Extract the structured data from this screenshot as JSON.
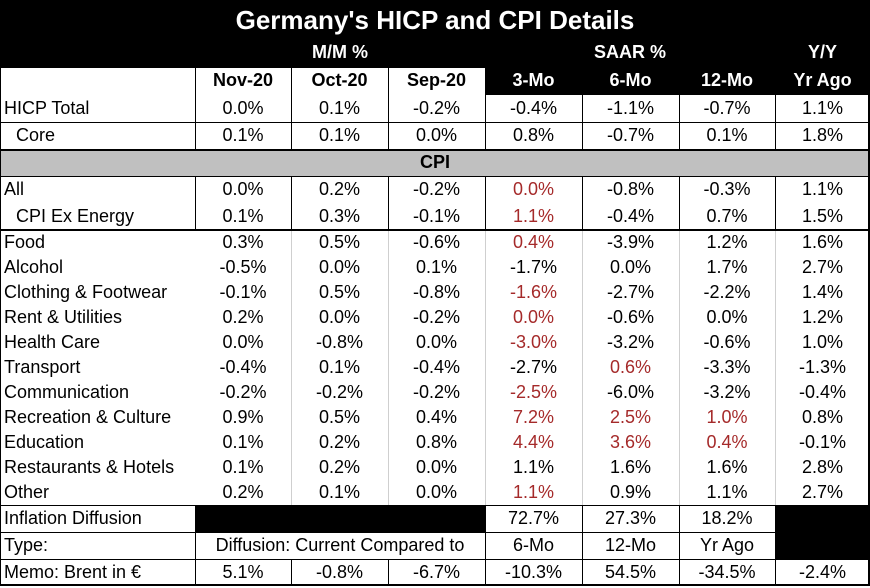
{
  "title": "Germany's HICP and CPI Details",
  "group_headers": {
    "mm": "M/M %",
    "saar": "SAAR %",
    "yy": "Y/Y"
  },
  "columns": [
    "Nov-20",
    "Oct-20",
    "Sep-20",
    "3-Mo",
    "6-Mo",
    "12-Mo",
    "Yr Ago"
  ],
  "hicp_rows": [
    {
      "label": "HICP Total",
      "values": [
        "0.0%",
        "0.1%",
        "-0.2%",
        "-0.4%",
        "-1.1%",
        "-0.7%",
        "1.1%"
      ]
    },
    {
      "label": "Core",
      "values": [
        "0.1%",
        "0.1%",
        "0.0%",
        "0.8%",
        "-0.7%",
        "0.1%",
        "1.8%"
      ]
    }
  ],
  "cpi_header": "CPI",
  "cpi_top_rows": [
    {
      "label": "All",
      "values": [
        "0.0%",
        "0.2%",
        "-0.2%",
        "0.0%",
        "-0.8%",
        "-0.3%",
        "1.1%"
      ]
    },
    {
      "label": "CPI Ex Energy",
      "values": [
        "0.1%",
        "0.3%",
        "-0.1%",
        "1.1%",
        "-0.4%",
        "0.7%",
        "1.5%"
      ]
    }
  ],
  "cpi_rows": [
    {
      "label": "Food",
      "values": [
        "0.3%",
        "0.5%",
        "-0.6%",
        "0.4%",
        "-3.9%",
        "1.2%",
        "1.6%"
      ]
    },
    {
      "label": "Alcohol",
      "values": [
        "-0.5%",
        "0.0%",
        "0.1%",
        "-1.7%",
        "0.0%",
        "1.7%",
        "2.7%"
      ]
    },
    {
      "label": "Clothing & Footwear",
      "values": [
        "-0.1%",
        "0.5%",
        "-0.8%",
        "-1.6%",
        "-2.7%",
        "-2.2%",
        "1.4%"
      ]
    },
    {
      "label": "Rent & Utilities",
      "values": [
        "0.2%",
        "0.0%",
        "-0.2%",
        "0.0%",
        "-0.6%",
        "0.0%",
        "1.2%"
      ]
    },
    {
      "label": "Health Care",
      "values": [
        "0.0%",
        "-0.8%",
        "0.0%",
        "-3.0%",
        "-3.2%",
        "-0.6%",
        "1.0%"
      ]
    },
    {
      "label": "Transport",
      "values": [
        "-0.4%",
        "0.1%",
        "-0.4%",
        "-2.7%",
        "0.6%",
        "-3.3%",
        "-1.3%"
      ]
    },
    {
      "label": "Communication",
      "values": [
        "-0.2%",
        "-0.2%",
        "-0.2%",
        "-2.5%",
        "-6.0%",
        "-3.2%",
        "-0.4%"
      ]
    },
    {
      "label": "Recreation & Culture",
      "values": [
        "0.9%",
        "0.5%",
        "0.4%",
        "7.2%",
        "2.5%",
        "1.0%",
        "0.8%"
      ]
    },
    {
      "label": "Education",
      "values": [
        "0.1%",
        "0.2%",
        "0.8%",
        "4.4%",
        "3.6%",
        "0.4%",
        "-0.1%"
      ]
    },
    {
      "label": "Restaurants & Hotels",
      "values": [
        "0.1%",
        "0.2%",
        "0.0%",
        "1.1%",
        "1.6%",
        "1.6%",
        "2.8%"
      ]
    },
    {
      "label": "Other",
      "values": [
        "0.2%",
        "0.1%",
        "0.0%",
        "1.1%",
        "0.9%",
        "1.1%",
        "2.7%"
      ]
    }
  ],
  "highlight_color": "#a52a2a",
  "red_cells": {
    "All": [
      3
    ],
    "CPI Ex Energy": [
      3
    ],
    "Food": [
      3
    ],
    "Clothing & Footwear": [
      3
    ],
    "Rent & Utilities": [
      3
    ],
    "Health Care": [
      3
    ],
    "Transport": [
      4
    ],
    "Communication": [
      3
    ],
    "Recreation & Culture": [
      3,
      4,
      5
    ],
    "Education": [
      3,
      4,
      5
    ],
    "Other": [
      3
    ]
  },
  "diffusion": {
    "label": "Inflation Diffusion",
    "values": [
      "72.7%",
      "27.3%",
      "18.2%"
    ]
  },
  "type_row": {
    "label": "Type:",
    "text": "Diffusion: Current Compared to",
    "values": [
      "6-Mo",
      "12-Mo",
      "Yr Ago"
    ]
  },
  "memo": {
    "label": "Memo: Brent in €",
    "values": [
      "5.1%",
      "-0.8%",
      "-6.7%",
      "-10.3%",
      "54.5%",
      "-34.5%",
      "-2.4%"
    ]
  }
}
